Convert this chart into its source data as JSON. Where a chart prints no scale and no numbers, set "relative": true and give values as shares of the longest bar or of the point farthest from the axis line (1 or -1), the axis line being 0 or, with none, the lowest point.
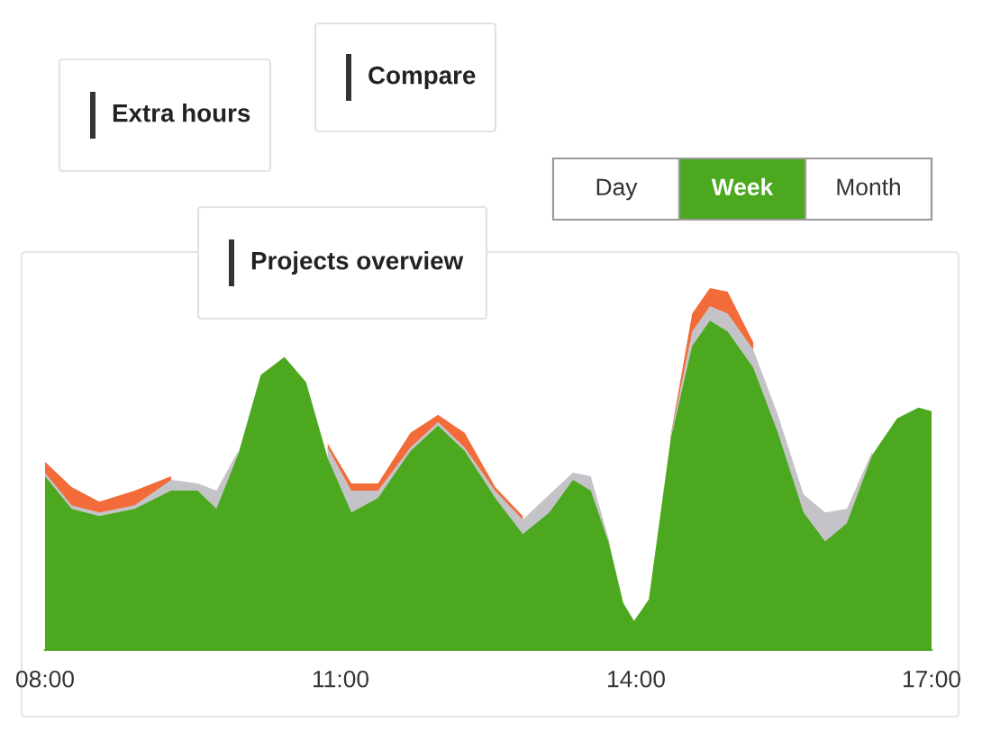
{
  "chart_data": {
    "type": "area",
    "relative": true,
    "grid": false,
    "legend": false,
    "x": [
      8.0,
      8.27,
      8.55,
      8.91,
      9.28,
      9.55,
      9.74,
      9.96,
      10.19,
      10.43,
      10.65,
      10.87,
      11.11,
      11.38,
      11.71,
      11.99,
      12.26,
      12.57,
      12.85,
      13.12,
      13.36,
      13.54,
      13.73,
      13.87,
      13.98,
      14.13,
      14.35,
      14.57,
      14.75,
      14.93,
      15.19,
      15.44,
      15.7,
      15.92,
      16.14,
      16.4,
      16.65,
      16.87,
      17.0
    ],
    "xlim": [
      8,
      17
    ],
    "xticks": [
      {
        "value": 8,
        "label": "08:00"
      },
      {
        "value": 11,
        "label": "11:00"
      },
      {
        "value": 14,
        "label": "14:00"
      },
      {
        "value": 17,
        "label": "17:00"
      }
    ],
    "series": [
      {
        "color": "#f26b38",
        "values": [
          0.52,
          0.45,
          0.41,
          0.44,
          0.48,
          null,
          null,
          null,
          null,
          null,
          null,
          0.57,
          0.46,
          0.46,
          0.6,
          0.65,
          0.6,
          0.45,
          0.37,
          null,
          null,
          null,
          null,
          null,
          null,
          null,
          0.59,
          0.93,
          1.0,
          0.99,
          0.85,
          null,
          null,
          null,
          null,
          null,
          null,
          null,
          null
        ]
      },
      {
        "color": "#c4c4c8",
        "values": [
          0.49,
          0.4,
          0.38,
          0.4,
          0.47,
          0.46,
          0.44,
          0.55,
          null,
          null,
          null,
          0.56,
          0.44,
          0.44,
          0.56,
          0.63,
          0.56,
          0.44,
          0.36,
          0.43,
          0.49,
          0.48,
          0.3,
          null,
          null,
          null,
          0.59,
          0.88,
          0.95,
          0.93,
          0.83,
          0.65,
          0.43,
          0.38,
          0.39,
          0.55,
          null,
          null,
          null
        ]
      },
      {
        "color": "#4ca81e",
        "values": [
          0.48,
          0.39,
          0.37,
          0.39,
          0.44,
          0.44,
          0.39,
          0.54,
          0.76,
          0.81,
          0.74,
          0.53,
          0.38,
          0.42,
          0.55,
          0.62,
          0.55,
          0.42,
          0.32,
          0.38,
          0.47,
          0.44,
          0.29,
          0.13,
          0.08,
          0.14,
          0.58,
          0.84,
          0.91,
          0.88,
          0.78,
          0.6,
          0.38,
          0.3,
          0.35,
          0.54,
          0.64,
          0.67,
          0.66
        ]
      }
    ],
    "annotations": [
      "Extra hours",
      "Compare",
      "Projects overview",
      "Day",
      "Week",
      "Month"
    ]
  }
}
